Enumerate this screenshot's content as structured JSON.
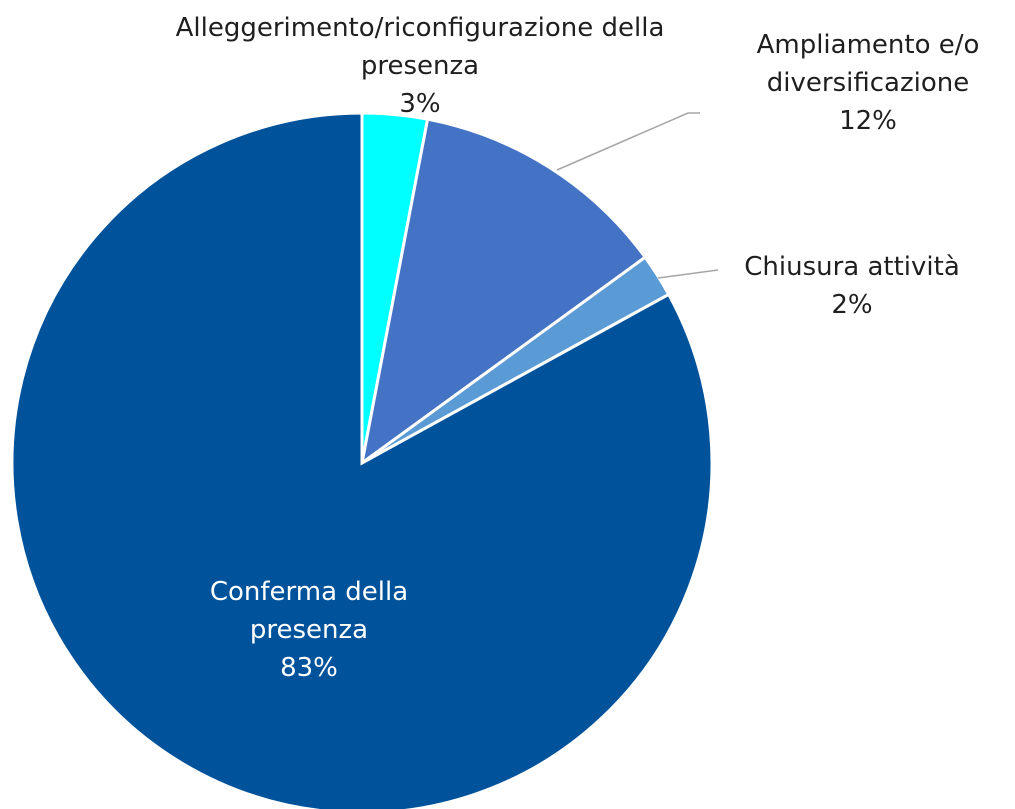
{
  "chart_data": {
    "type": "pie",
    "categories": [
      "Alleggerimento/riconfigurazione della presenza",
      "Ampliamento e/o diversificazione",
      "Chiusura attività",
      "Conferma della presenza"
    ],
    "values": [
      3,
      12,
      2,
      83
    ],
    "value_labels": [
      "3%",
      "12%",
      "2%",
      "83%"
    ],
    "colors": [
      "#00ffff",
      "#4472c4",
      "#5b9bd5",
      "#00529b"
    ]
  }
}
